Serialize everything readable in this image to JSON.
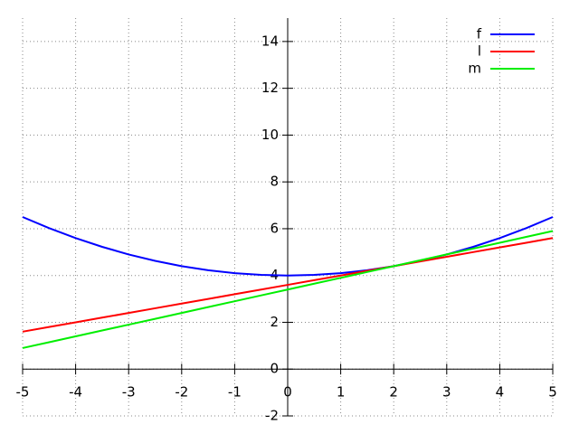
{
  "chart_data": {
    "type": "line",
    "x": [
      -5,
      -4.5,
      -4,
      -3.5,
      -3,
      -2.5,
      -2,
      -1.5,
      -1,
      -0.5,
      0,
      0.5,
      1,
      1.5,
      2,
      2.5,
      3,
      3.5,
      4,
      4.5,
      5
    ],
    "series": [
      {
        "name": "f",
        "color": "#0000ff",
        "values": [
          6.5,
          6.025,
          5.6,
          5.225,
          4.9,
          4.625,
          4.4,
          4.225,
          4.1,
          4.025,
          4,
          4.025,
          4.1,
          4.225,
          4.4,
          4.625,
          4.9,
          5.225,
          5.6,
          6.025,
          6.5
        ]
      },
      {
        "name": "l",
        "color": "#ff0000",
        "values": [
          1.6,
          1.8,
          2.0,
          2.2,
          2.4,
          2.6,
          2.8,
          3.0,
          3.2,
          3.4,
          3.6,
          3.8,
          4.0,
          4.2,
          4.4,
          4.6,
          4.8,
          5.0,
          5.2,
          5.4,
          5.6
        ]
      },
      {
        "name": "m",
        "color": "#00ee00",
        "values": [
          0.9,
          1.15,
          1.4,
          1.65,
          1.9,
          2.15,
          2.4,
          2.65,
          2.9,
          3.15,
          3.4,
          3.65,
          3.9,
          4.15,
          4.4,
          4.65,
          4.9,
          5.15,
          5.4,
          5.65,
          5.9
        ]
      }
    ],
    "xlim": [
      -5,
      5
    ],
    "xticks": [
      -5,
      -4,
      -3,
      -2,
      -1,
      0,
      1,
      2,
      3,
      4,
      5
    ],
    "ylim": [
      -2,
      15
    ],
    "yticks": [
      -2,
      0,
      2,
      4,
      6,
      8,
      10,
      12,
      14
    ],
    "grid": true,
    "legend": "top-right"
  }
}
